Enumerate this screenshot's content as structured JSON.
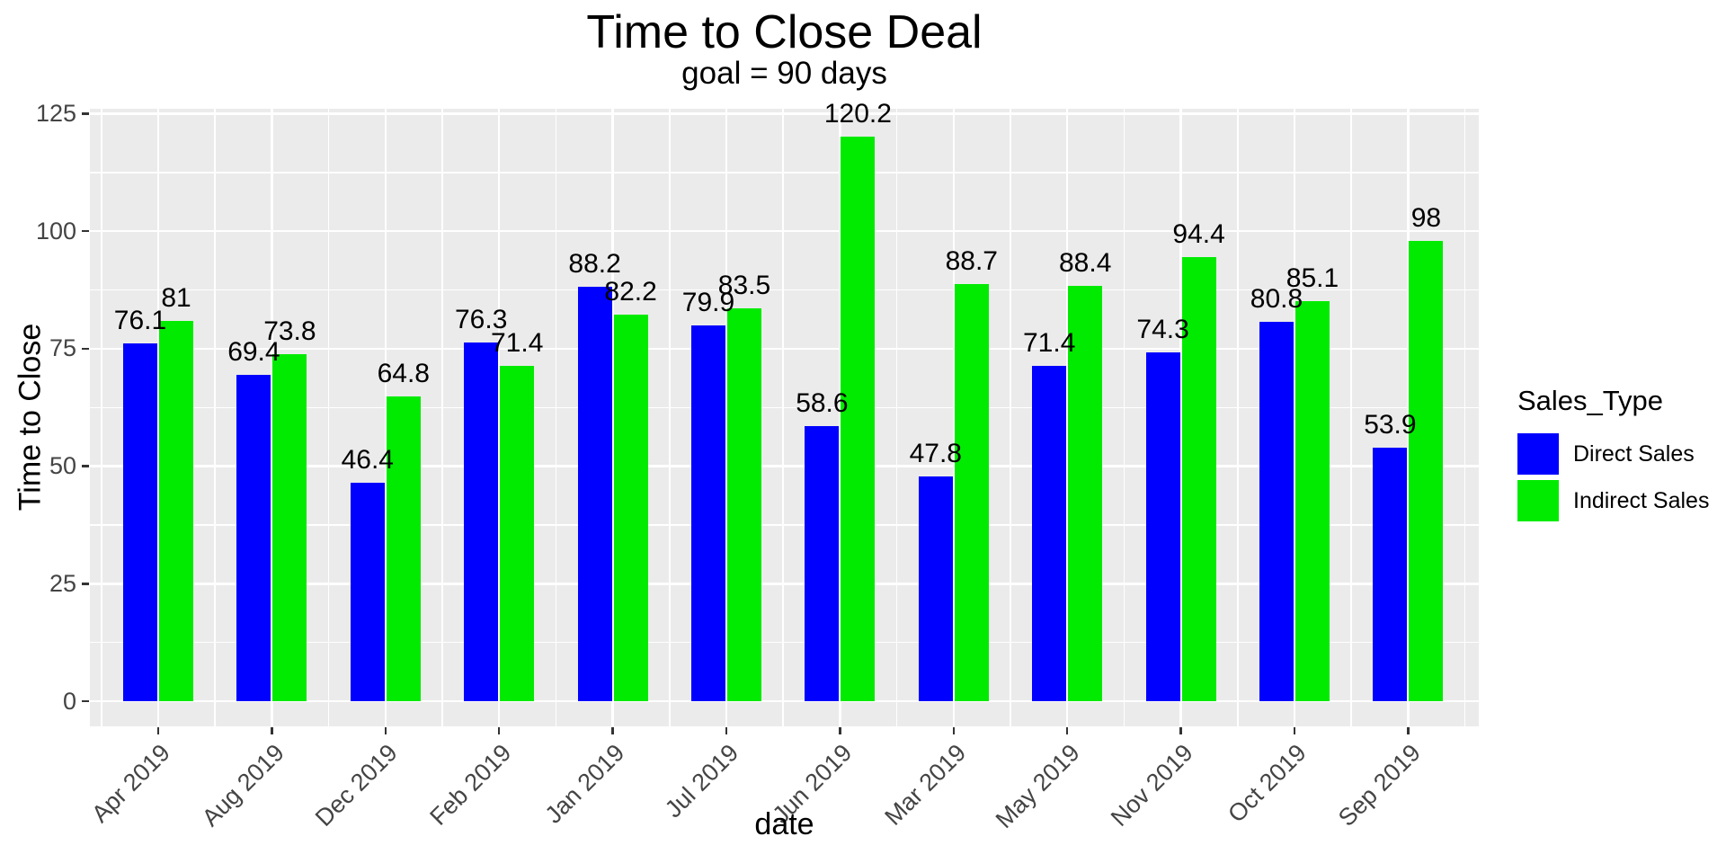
{
  "chart_data": {
    "type": "bar",
    "title": "Time to Close Deal",
    "subtitle": "goal = 90 days",
    "xlabel": "date",
    "ylabel": "Time to Close",
    "legend_title": "Sales_Type",
    "legend_position": "right",
    "grid": "white gridlines on gray panel",
    "panel_background": "#EBEBEB",
    "axis_text_color": "#444444",
    "ylim": [
      0,
      125
    ],
    "yticks": [
      0,
      25,
      50,
      75,
      100,
      125
    ],
    "categories": [
      "Apr 2019",
      "Aug 2019",
      "Dec 2019",
      "Feb 2019",
      "Jan 2019",
      "Jul 2019",
      "Jun 2019",
      "Mar 2019",
      "May 2019",
      "Nov 2019",
      "Oct 2019",
      "Sep 2019"
    ],
    "series": [
      {
        "name": "Direct Sales",
        "color": "#0000FF",
        "values": [
          76.1,
          69.4,
          46.4,
          76.3,
          88.2,
          79.9,
          58.6,
          47.8,
          71.4,
          74.3,
          80.8,
          53.9
        ],
        "labels": [
          "76.1",
          "69.4",
          "46.4",
          "76.3",
          "88.2",
          "79.9",
          "58.6",
          "47.8",
          "71.4",
          "74.3",
          "80.8",
          "53.9"
        ]
      },
      {
        "name": "Indirect Sales",
        "color": "#00EB00",
        "values": [
          81,
          73.8,
          64.8,
          71.4,
          82.2,
          83.5,
          120.2,
          88.7,
          88.4,
          94.4,
          85.1,
          98
        ],
        "labels": [
          "81",
          "73.8",
          "64.8",
          "71.4",
          "82.2",
          "83.5",
          "120.2",
          "88.7",
          "88.4",
          "94.4",
          "85.1",
          "98"
        ]
      }
    ]
  }
}
